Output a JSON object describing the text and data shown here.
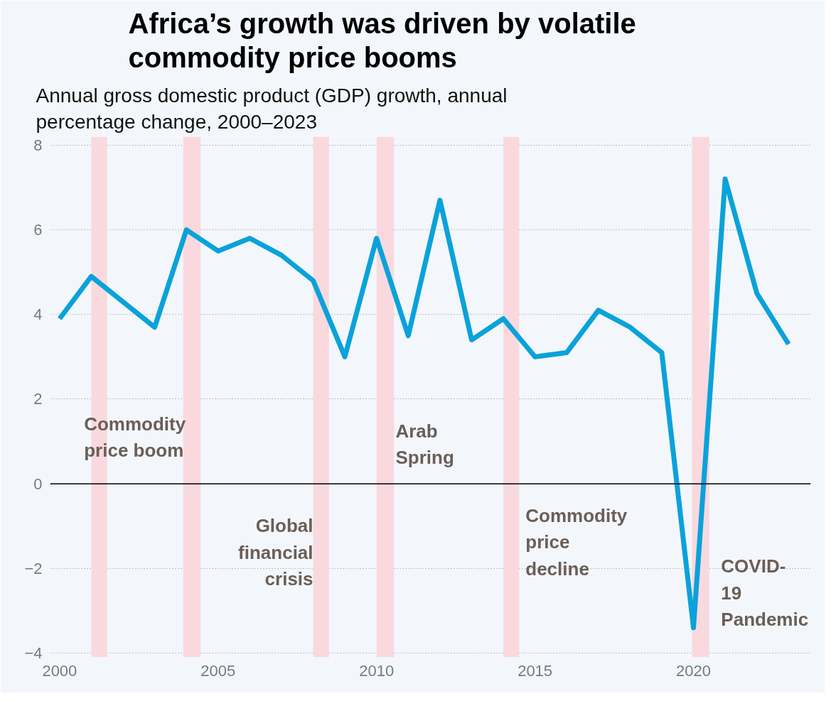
{
  "chart_data": {
    "type": "line",
    "title": "Africa’s growth was driven by volatile commodity price booms",
    "subtitle": "Annual gross domestic product (GDP) growth, annual percentage change, 2000–2023",
    "x": [
      2000,
      2001,
      2002,
      2003,
      2004,
      2005,
      2006,
      2007,
      2008,
      2009,
      2010,
      2011,
      2012,
      2013,
      2014,
      2015,
      2016,
      2017,
      2018,
      2019,
      2020,
      2021,
      2022,
      2023
    ],
    "series": [
      {
        "color": "#0aa2da",
        "values": [
          3.9,
          4.9,
          4.3,
          3.7,
          6.0,
          5.5,
          5.8,
          5.4,
          4.8,
          3.0,
          5.8,
          3.5,
          6.7,
          3.4,
          3.9,
          3.0,
          3.1,
          4.1,
          3.7,
          3.1,
          -3.4,
          7.2,
          4.5,
          3.3
        ]
      }
    ],
    "xlim": [
      1999.7,
      2023.7
    ],
    "xticks": [
      2000,
      2005,
      2010,
      2015,
      2020
    ],
    "ylim": [
      -4.1,
      8.2
    ],
    "yticks": [
      -4,
      -2,
      0,
      2,
      4,
      6,
      8
    ],
    "grid": "y",
    "marker": "none",
    "line_style": "solid",
    "ref_lines": [
      {
        "axis": "y",
        "value": 0,
        "color": "#000000"
      }
    ],
    "bands": [
      {
        "axis": "x",
        "from": 2001.0,
        "to": 2001.5,
        "color": "#f9d9de",
        "label": "Commodity\nprice boom"
      },
      {
        "axis": "x",
        "from": 2003.9,
        "to": 2004.45,
        "color": "#f9d9de"
      },
      {
        "axis": "x",
        "from": 2008.0,
        "to": 2008.5,
        "color": "#f9d9de",
        "label": "Global\nfinancial\ncrisis"
      },
      {
        "axis": "x",
        "from": 2010.0,
        "to": 2010.55,
        "color": "#f9d9de",
        "label": "Arab\nSpring"
      },
      {
        "axis": "x",
        "from": 2014.0,
        "to": 2014.5,
        "color": "#f9d9de",
        "label": "Commodity\nprice\ndecline"
      },
      {
        "axis": "x",
        "from": 2019.95,
        "to": 2020.5,
        "color": "#f9d9de",
        "label": "COVID-\n19\nPandemic"
      }
    ]
  }
}
